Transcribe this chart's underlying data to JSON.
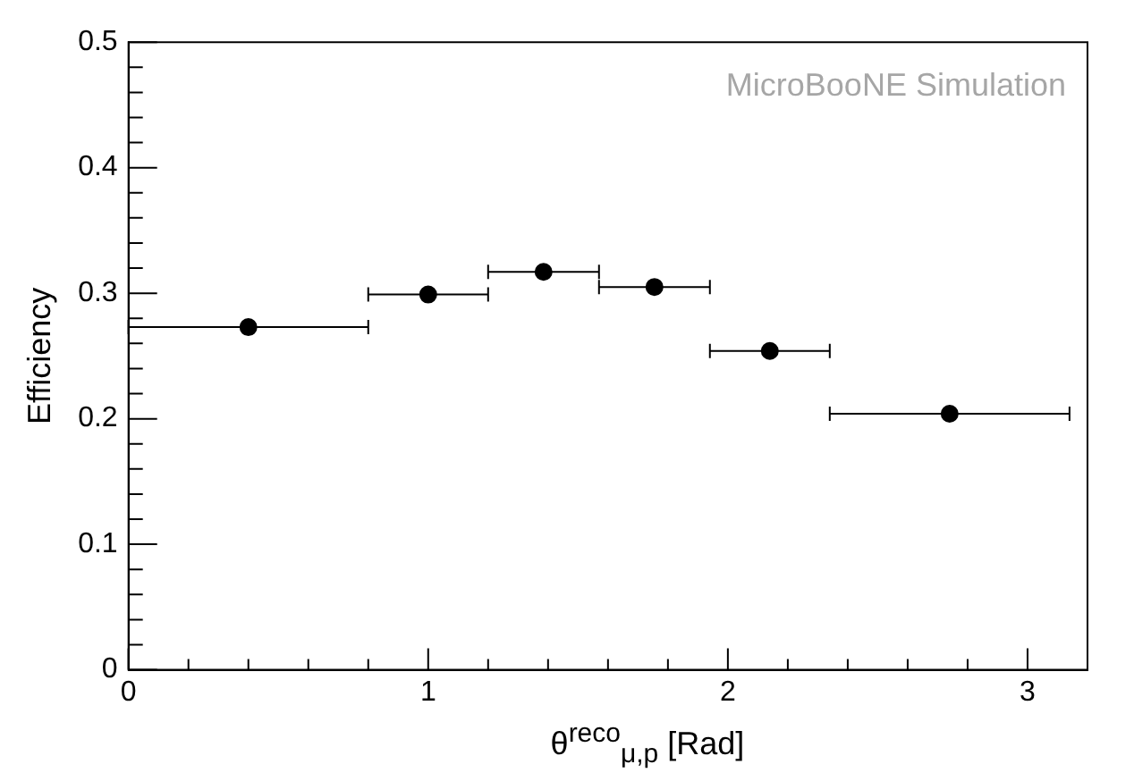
{
  "chart_data": {
    "type": "scatter",
    "xlabel": "θ$^{reco}$$_{μ,p}$ [Rad]",
    "ylabel": "Efficiency",
    "annotations": [
      "MicroBooNE Simulation"
    ],
    "x": [
      0.4,
      1.0,
      1.385,
      1.755,
      2.14,
      2.74
    ],
    "values": [
      0.273,
      0.299,
      0.317,
      0.305,
      0.254,
      0.204
    ],
    "xerrors": [
      0.4,
      0.2,
      0.185,
      0.185,
      0.2,
      0.4
    ],
    "color": "#000000",
    "marker": "circle",
    "grid": false,
    "legend": false,
    "xlim": [
      0,
      3.2
    ],
    "xticks": [
      0,
      {
        "value": 0.2,
        "label": null
      },
      {
        "value": 0.4,
        "label": null
      },
      {
        "value": 0.6,
        "label": null
      },
      {
        "value": 0.8,
        "label": null
      },
      1,
      {
        "value": 1.2,
        "label": null
      },
      {
        "value": 1.4,
        "label": null
      },
      {
        "value": 1.6,
        "label": null
      },
      {
        "value": 1.8,
        "label": null
      },
      2,
      {
        "value": 2.2,
        "label": null
      },
      {
        "value": 2.4,
        "label": null
      },
      {
        "value": 2.6,
        "label": null
      },
      {
        "value": 2.8,
        "label": null
      },
      3
    ],
    "ylim": [
      0,
      0.5
    ],
    "yticks": [
      0,
      {
        "value": 0.02,
        "label": null
      },
      {
        "value": 0.04,
        "label": null
      },
      {
        "value": 0.06,
        "label": null
      },
      {
        "value": 0.08,
        "label": null
      },
      0.1,
      {
        "value": 0.12,
        "label": null
      },
      {
        "value": 0.14,
        "label": null
      },
      {
        "value": 0.16,
        "label": null
      },
      {
        "value": 0.18,
        "label": null
      },
      0.2,
      {
        "value": 0.22,
        "label": null
      },
      {
        "value": 0.24,
        "label": null
      },
      {
        "value": 0.26,
        "label": null
      },
      {
        "value": 0.28,
        "label": null
      },
      0.3,
      {
        "value": 0.32,
        "label": null
      },
      {
        "value": 0.34,
        "label": null
      },
      {
        "value": 0.36,
        "label": null
      },
      {
        "value": 0.38,
        "label": null
      },
      0.4,
      {
        "value": 0.42,
        "label": null
      },
      {
        "value": 0.44,
        "label": null
      },
      {
        "value": 0.46,
        "label": null
      },
      {
        "value": 0.48,
        "label": null
      },
      0.5
    ]
  }
}
